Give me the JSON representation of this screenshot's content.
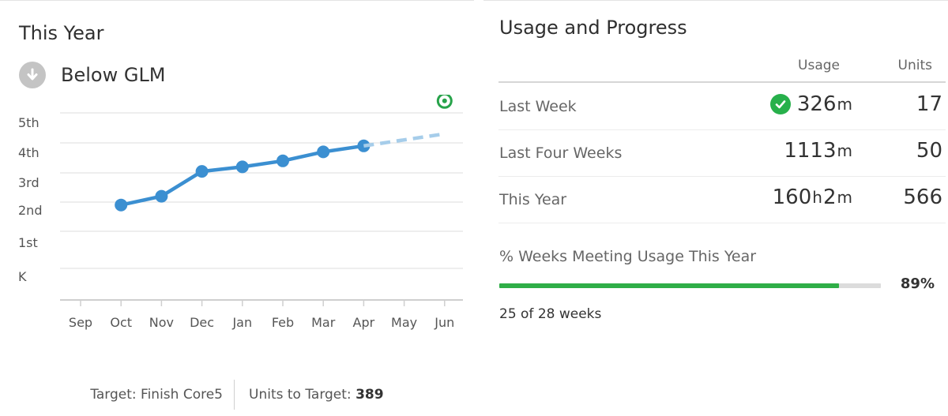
{
  "left": {
    "title": "This Year",
    "status": {
      "label": "Below GLM",
      "icon": "down-arrow-icon"
    },
    "footer": {
      "target_label": "Target: Finish Core5",
      "units_to_target_label": "Units to Target:",
      "units_to_target_value": "389"
    }
  },
  "chart_data": {
    "type": "line",
    "categories": [
      "Sep",
      "Oct",
      "Nov",
      "Dec",
      "Jan",
      "Feb",
      "Mar",
      "Apr",
      "May",
      "Jun"
    ],
    "y_ticks": [
      "K",
      "1st",
      "2nd",
      "3rd",
      "4th",
      "5th"
    ],
    "ylim": [
      0,
      6
    ],
    "series": [
      {
        "style": "solid-with-markers",
        "color": "#3b8fd1",
        "points": [
          {
            "x": "Oct",
            "y": 1.9
          },
          {
            "x": "Nov",
            "y": 2.2
          },
          {
            "x": "Dec",
            "y": 3.05
          },
          {
            "x": "Jan",
            "y": 3.2
          },
          {
            "x": "Feb",
            "y": 3.4
          },
          {
            "x": "Mar",
            "y": 3.7
          },
          {
            "x": "Apr",
            "y": 3.9
          }
        ]
      },
      {
        "style": "dashed-projection",
        "color": "#a6cdea",
        "points": [
          {
            "x": "Apr",
            "y": 3.9
          },
          {
            "x": "Jun",
            "y": 4.3
          }
        ]
      }
    ],
    "target_marker": {
      "x": "Jun",
      "y": 5.4,
      "color": "#27a34a",
      "icon": "target-icon"
    },
    "grid": true
  },
  "right": {
    "title": "Usage and Progress",
    "columns": {
      "usage": "Usage",
      "units": "Units"
    },
    "rows": [
      {
        "label": "Last Week",
        "usage_parts": [
          {
            "value": "326",
            "unit": "m"
          }
        ],
        "units": "17",
        "check": true
      },
      {
        "label": "Last Four Weeks",
        "usage_parts": [
          {
            "value": "1113",
            "unit": "m"
          }
        ],
        "units": "50",
        "check": false
      },
      {
        "label": "This Year",
        "usage_parts": [
          {
            "value": "160",
            "unit": "h"
          },
          {
            "value": "2",
            "unit": "m"
          }
        ],
        "units": "566",
        "check": false
      }
    ],
    "weeks_meeting": {
      "title": "% Weeks Meeting Usage This Year",
      "percent_label": "89%",
      "fraction": 0.89,
      "summary": "25 of 28 weeks"
    },
    "colors": {
      "accent_green": "#2fae47",
      "line_blue": "#3b8fd1"
    }
  }
}
